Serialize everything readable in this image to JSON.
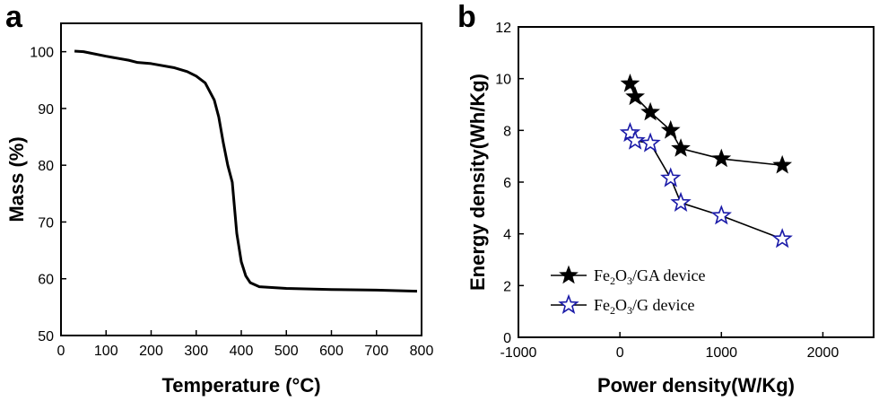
{
  "chart_data": [
    {
      "panel_label": "a",
      "type": "line",
      "xlabel": "Temperature (°C)",
      "ylabel": "Mass (%)",
      "xlim": [
        0,
        800
      ],
      "ylim": [
        50,
        105
      ],
      "xticks": [
        0,
        100,
        200,
        300,
        400,
        500,
        600,
        700,
        800
      ],
      "yticks": [
        50,
        60,
        70,
        80,
        90,
        100
      ],
      "series": [
        {
          "x": [
            30,
            50,
            100,
            150,
            170,
            200,
            250,
            280,
            300,
            320,
            340,
            350,
            360,
            370,
            380,
            390,
            400,
            410,
            420,
            440,
            460,
            500,
            600,
            700,
            790
          ],
          "y": [
            100.1,
            100.0,
            99.2,
            98.5,
            98.1,
            97.9,
            97.2,
            96.5,
            95.7,
            94.5,
            91.5,
            88.5,
            84.0,
            80.0,
            77.0,
            68.0,
            63.0,
            60.5,
            59.3,
            58.6,
            58.5,
            58.3,
            58.1,
            58.0,
            57.8
          ],
          "color": "#000000"
        }
      ]
    },
    {
      "panel_label": "b",
      "type": "line",
      "xlabel": "Power density(W/Kg)",
      "ylabel": "Energy density(Wh/Kg)",
      "xlim": [
        -1000,
        2500
      ],
      "ylim": [
        0,
        12
      ],
      "xticks": [
        -1000,
        0,
        1000,
        2000
      ],
      "yticks": [
        0,
        2,
        4,
        6,
        8,
        10,
        12
      ],
      "legend_position": "lower-left",
      "series": [
        {
          "name_main": "Fe",
          "name_sub1": "2",
          "name_mid": "O",
          "name_sub2": "3",
          "name_rest": "/GA device",
          "marker": "filled-star",
          "color": "#000000",
          "x": [
            100,
            150,
            300,
            500,
            600,
            1000,
            1600
          ],
          "y": [
            9.8,
            9.3,
            8.7,
            8.0,
            7.3,
            6.9,
            6.65
          ]
        },
        {
          "name_main": "Fe",
          "name_sub1": "2",
          "name_mid": "O",
          "name_sub2": "3",
          "name_rest": "/G device",
          "marker": "open-star",
          "color": "#1a1aa8",
          "line_color": "#000000",
          "x": [
            100,
            150,
            300,
            500,
            600,
            1000,
            1600
          ],
          "y": [
            7.9,
            7.6,
            7.5,
            6.15,
            5.2,
            4.7,
            3.8
          ]
        }
      ]
    }
  ]
}
